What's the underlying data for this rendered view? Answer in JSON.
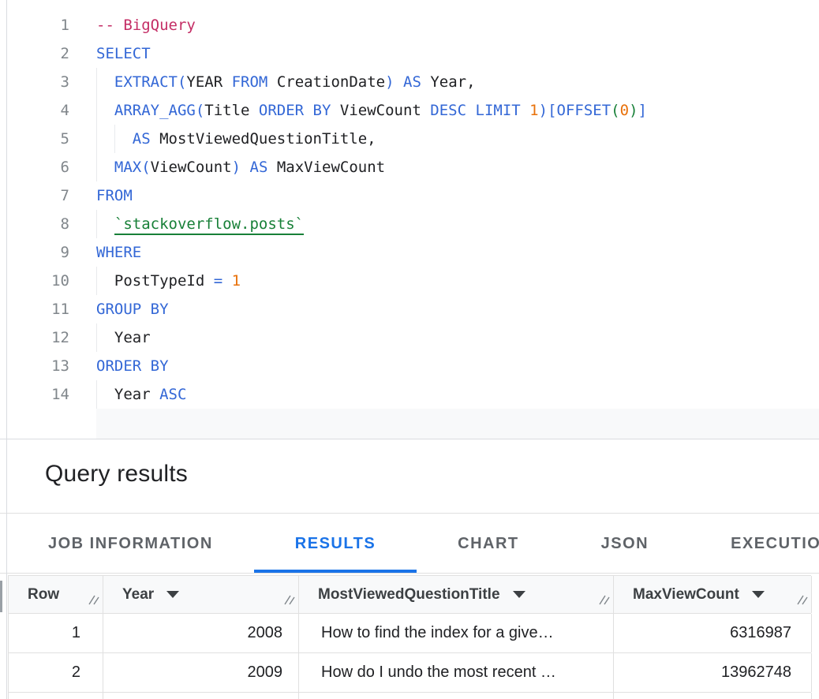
{
  "colors": {
    "accent": "#1A73E8",
    "keyword_blue": "#3367D6",
    "number_orange": "#E8710A",
    "comment_pink": "#C42D65",
    "table_link_green": "#188038"
  },
  "editor": {
    "language_hint": "SQL",
    "lines": [
      {
        "n": "1",
        "indent": 0,
        "tokens": [
          {
            "t": "-- BigQuery",
            "c": "cm"
          }
        ]
      },
      {
        "n": "2",
        "indent": 0,
        "tokens": [
          {
            "t": "SELECT",
            "c": "kw"
          }
        ]
      },
      {
        "n": "3",
        "indent": 1,
        "tokens": [
          {
            "t": "EXTRACT",
            "c": "kw"
          },
          {
            "t": "(",
            "c": "b1"
          },
          {
            "t": "YEAR ",
            "c": "id"
          },
          {
            "t": "FROM",
            "c": "kw"
          },
          {
            "t": " CreationDate",
            "c": "id"
          },
          {
            "t": ")",
            "c": "b1"
          },
          {
            "t": " ",
            "c": "id"
          },
          {
            "t": "AS",
            "c": "kw"
          },
          {
            "t": " Year,",
            "c": "id"
          }
        ]
      },
      {
        "n": "4",
        "indent": 1,
        "tokens": [
          {
            "t": "ARRAY_AGG",
            "c": "kw"
          },
          {
            "t": "(",
            "c": "b1"
          },
          {
            "t": "Title ",
            "c": "id"
          },
          {
            "t": "ORDER BY",
            "c": "kw"
          },
          {
            "t": " ViewCount ",
            "c": "id"
          },
          {
            "t": "DESC",
            "c": "kw"
          },
          {
            "t": " ",
            "c": "id"
          },
          {
            "t": "LIMIT",
            "c": "kw"
          },
          {
            "t": " ",
            "c": "id"
          },
          {
            "t": "1",
            "c": "num"
          },
          {
            "t": ")",
            "c": "b1"
          },
          {
            "t": "[",
            "c": "b1"
          },
          {
            "t": "OFFSET",
            "c": "kw"
          },
          {
            "t": "(",
            "c": "b2"
          },
          {
            "t": "0",
            "c": "num"
          },
          {
            "t": ")",
            "c": "b2"
          },
          {
            "t": "]",
            "c": "b1"
          }
        ]
      },
      {
        "n": "5",
        "indent": 2,
        "tokens": [
          {
            "t": "AS",
            "c": "kw"
          },
          {
            "t": " MostViewedQuestionTitle,",
            "c": "id"
          }
        ]
      },
      {
        "n": "6",
        "indent": 1,
        "tokens": [
          {
            "t": "MAX",
            "c": "kw"
          },
          {
            "t": "(",
            "c": "b1"
          },
          {
            "t": "ViewCount",
            "c": "id"
          },
          {
            "t": ")",
            "c": "b1"
          },
          {
            "t": " ",
            "c": "id"
          },
          {
            "t": "AS",
            "c": "kw"
          },
          {
            "t": " MaxViewCount",
            "c": "id"
          }
        ]
      },
      {
        "n": "7",
        "indent": 0,
        "tokens": [
          {
            "t": "FROM",
            "c": "kw"
          }
        ]
      },
      {
        "n": "8",
        "indent": 1,
        "tokens": [
          {
            "t": "`stackoverflow.posts`",
            "c": "tbl"
          }
        ]
      },
      {
        "n": "9",
        "indent": 0,
        "tokens": [
          {
            "t": "WHERE",
            "c": "kw"
          }
        ]
      },
      {
        "n": "10",
        "indent": 1,
        "tokens": [
          {
            "t": "PostTypeId ",
            "c": "id"
          },
          {
            "t": "=",
            "c": "op"
          },
          {
            "t": " ",
            "c": "id"
          },
          {
            "t": "1",
            "c": "num"
          }
        ]
      },
      {
        "n": "11",
        "indent": 0,
        "tokens": [
          {
            "t": "GROUP BY",
            "c": "kw"
          }
        ]
      },
      {
        "n": "12",
        "indent": 1,
        "tokens": [
          {
            "t": "Year",
            "c": "id"
          }
        ]
      },
      {
        "n": "13",
        "indent": 0,
        "tokens": [
          {
            "t": "ORDER BY",
            "c": "kw"
          }
        ]
      },
      {
        "n": "14",
        "indent": 1,
        "tokens": [
          {
            "t": "Year ",
            "c": "id"
          },
          {
            "t": "ASC",
            "c": "kw"
          }
        ]
      }
    ]
  },
  "results": {
    "title": "Query results"
  },
  "tabs": [
    {
      "label": "JOB INFORMATION",
      "active": false
    },
    {
      "label": "RESULTS",
      "active": true
    },
    {
      "label": "CHART",
      "active": false
    },
    {
      "label": "JSON",
      "active": false
    },
    {
      "label": "EXECUTION DETAILS",
      "active": false
    }
  ],
  "table": {
    "columns": [
      {
        "label": "Row",
        "sortable": false,
        "align": "right",
        "header_align": "left"
      },
      {
        "label": "Year",
        "sortable": true,
        "align": "right",
        "header_align": "left"
      },
      {
        "label": "MostViewedQuestionTitle",
        "sortable": true,
        "align": "left",
        "header_align": "left"
      },
      {
        "label": "MaxViewCount",
        "sortable": true,
        "align": "right",
        "header_align": "left"
      }
    ],
    "rows": [
      [
        "1",
        "2008",
        "How to find the index for a give…",
        "6316987"
      ],
      [
        "2",
        "2009",
        "How do I undo the most recent …",
        "13962748"
      ]
    ]
  },
  "icons": {
    "column_menu_arrow": "triangle-down",
    "column_resize_grip": "double-diagonal-lines"
  }
}
